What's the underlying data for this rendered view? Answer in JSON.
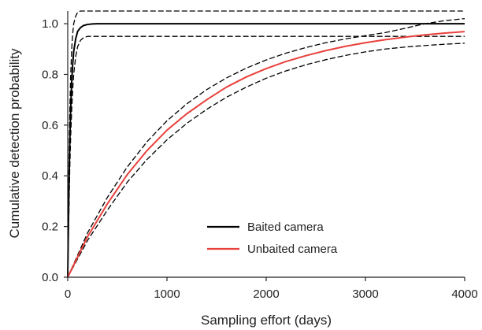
{
  "chart_data": {
    "type": "line",
    "title": "",
    "xlabel": "Sampling effort (days)",
    "ylabel": "Cumulative detection probability",
    "xlim": [
      0,
      4000
    ],
    "ylim": [
      0,
      1.05
    ],
    "x_ticks": [
      0,
      1000,
      2000,
      3000,
      4000
    ],
    "y_ticks": [
      0.0,
      0.2,
      0.4,
      0.6,
      0.8,
      1.0
    ],
    "x_tick_labels": [
      "0",
      "1000",
      "2000",
      "3000",
      "4000"
    ],
    "y_tick_labels": [
      "0.0",
      "0.2",
      "0.4",
      "0.6",
      "0.8",
      "1.0"
    ],
    "grid": false,
    "legend_position": "bottom-center",
    "series": [
      {
        "name": "Baited camera",
        "color": "#000000",
        "style": "solid",
        "x": [
          0,
          10,
          20,
          30,
          40,
          50,
          60,
          80,
          100,
          130,
          160,
          200,
          250,
          300,
          500,
          1000,
          2000,
          3000,
          4000
        ],
        "y": [
          0.0,
          0.3,
          0.52,
          0.67,
          0.77,
          0.84,
          0.89,
          0.94,
          0.97,
          0.985,
          0.993,
          0.997,
          0.999,
          1.0,
          1.0,
          1.0,
          1.0,
          1.0,
          1.0
        ]
      },
      {
        "name": "Unbaited camera",
        "color": "#e8413c",
        "style": "solid",
        "x": [
          0,
          200,
          400,
          600,
          800,
          1000,
          1200,
          1400,
          1600,
          1800,
          2000,
          2200,
          2400,
          2600,
          2800,
          3000,
          3200,
          3400,
          3600,
          3800,
          4000
        ],
        "y": [
          0.0,
          0.16,
          0.29,
          0.405,
          0.5,
          0.58,
          0.645,
          0.7,
          0.75,
          0.79,
          0.823,
          0.851,
          0.874,
          0.894,
          0.911,
          0.925,
          0.937,
          0.947,
          0.956,
          0.963,
          0.969
        ]
      },
      {
        "name": "",
        "color": "#000000",
        "style": "dashed",
        "x": [
          0,
          10,
          20,
          30,
          40,
          50,
          60,
          80,
          100,
          130,
          160,
          200,
          250,
          300,
          500,
          1000,
          2000,
          3000,
          4000
        ],
        "y": [
          0.0,
          0.4,
          0.64,
          0.8,
          0.9,
          0.96,
          1.0,
          1.03,
          1.045,
          1.05,
          1.05,
          1.05,
          1.05,
          1.05,
          1.05,
          1.05,
          1.05,
          1.05,
          1.05
        ]
      },
      {
        "name": "",
        "color": "#000000",
        "style": "dashed",
        "x": [
          0,
          10,
          20,
          30,
          40,
          50,
          60,
          80,
          100,
          130,
          160,
          200,
          250,
          300,
          500,
          1000,
          2000,
          3000,
          4000
        ],
        "y": [
          0.0,
          0.22,
          0.42,
          0.56,
          0.66,
          0.74,
          0.8,
          0.87,
          0.91,
          0.935,
          0.945,
          0.95,
          0.95,
          0.95,
          0.95,
          0.95,
          0.95,
          0.95,
          0.95
        ]
      },
      {
        "name": "",
        "color": "#000000",
        "style": "dashed",
        "x": [
          0,
          200,
          400,
          600,
          800,
          1000,
          1200,
          1400,
          1600,
          1800,
          2000,
          2200,
          2400,
          2600,
          2800,
          3000,
          3200,
          3400,
          3600,
          3800,
          4000
        ],
        "y": [
          0.0,
          0.175,
          0.315,
          0.435,
          0.535,
          0.617,
          0.684,
          0.74,
          0.786,
          0.825,
          0.857,
          0.884,
          0.906,
          0.925,
          0.94,
          0.953,
          0.965,
          0.982,
          1.0,
          1.012,
          1.02
        ]
      },
      {
        "name": "",
        "color": "#000000",
        "style": "dashed",
        "x": [
          0,
          200,
          400,
          600,
          800,
          1000,
          1200,
          1400,
          1600,
          1800,
          2000,
          2200,
          2400,
          2600,
          2800,
          3000,
          3200,
          3400,
          3600,
          3800,
          4000
        ],
        "y": [
          0.0,
          0.145,
          0.265,
          0.375,
          0.465,
          0.542,
          0.607,
          0.662,
          0.71,
          0.75,
          0.785,
          0.814,
          0.838,
          0.858,
          0.875,
          0.889,
          0.9,
          0.908,
          0.914,
          0.919,
          0.923
        ]
      }
    ]
  }
}
